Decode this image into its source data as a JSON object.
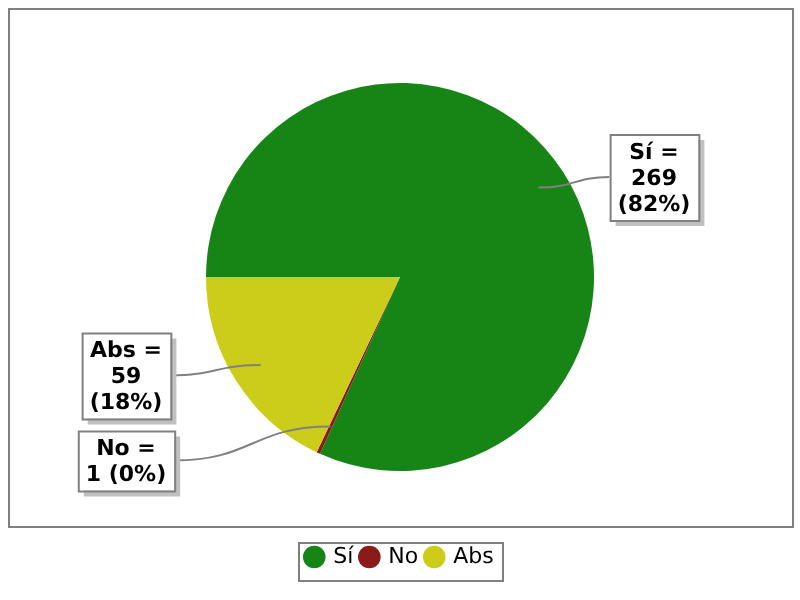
{
  "chart_data": {
    "type": "pie",
    "categories": [
      "Sí",
      "No",
      "Abs"
    ],
    "values": [
      269,
      1,
      59
    ],
    "colors": [
      "#168516",
      "#8b1a1a",
      "#cccc1a"
    ],
    "value_labels": [
      "Sí =\n269\n(82%)",
      "No =\n1 (0%)",
      "Abs =\n59\n(18%)"
    ],
    "legend": "bottom"
  }
}
